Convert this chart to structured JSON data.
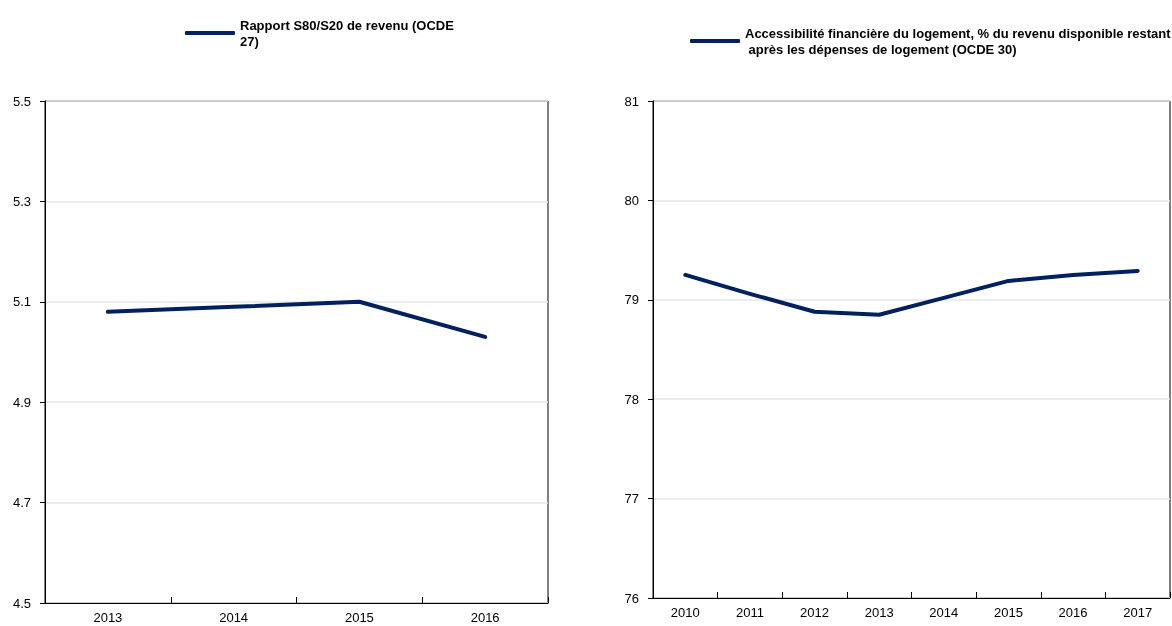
{
  "chart_data": [
    {
      "type": "line",
      "categories": [
        "2013",
        "2014",
        "2015",
        "2016"
      ],
      "series": [
        {
          "name": "Rapport S80/S20 de revenu (OCDE 27)",
          "color": "#002060",
          "values": [
            5.08,
            5.09,
            5.1,
            5.03
          ]
        }
      ],
      "ylim": [
        4.5,
        5.5
      ],
      "yticks": [
        4.5,
        4.7,
        4.9,
        5.1,
        5.3,
        5.5
      ],
      "grid": "y",
      "legend": "top",
      "marker": "none",
      "line_style": "solid"
    },
    {
      "type": "line",
      "categories": [
        "2010",
        "2011",
        "2012",
        "2013",
        "2014",
        "2015",
        "2016",
        "2017"
      ],
      "series": [
        {
          "name": "Accessibilité financière du logement, % du revenu disponible restant après les dépenses de logement (OCDE 30)",
          "color": "#002060",
          "values": [
            79.25,
            79.06,
            78.88,
            78.85,
            79.02,
            79.19,
            79.25,
            79.29
          ]
        }
      ],
      "ylim": [
        76,
        81
      ],
      "yticks": [
        76,
        77,
        78,
        79,
        80,
        81
      ],
      "grid": "y",
      "legend": "top",
      "marker": "none",
      "line_style": "solid"
    }
  ]
}
